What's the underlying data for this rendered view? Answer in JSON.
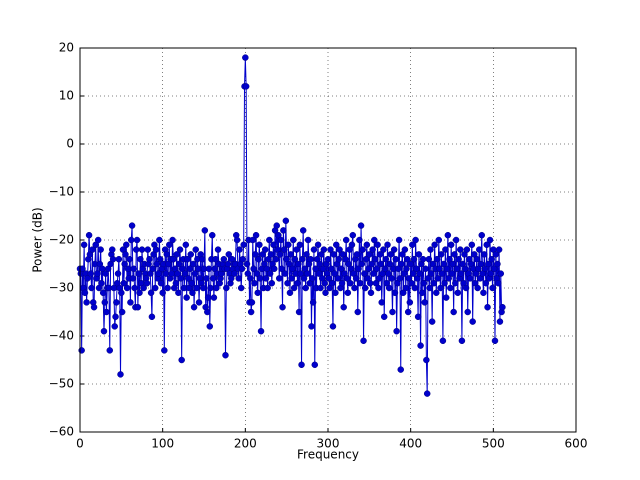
{
  "chart_data": {
    "type": "line",
    "xlabel": "Frequency",
    "ylabel": "Power (dB)",
    "xlim": [
      0,
      600
    ],
    "xticks": [
      0,
      100,
      200,
      300,
      400,
      500,
      600
    ],
    "ylim": [
      -60,
      20
    ],
    "yticks": [
      {
        "value": -60,
        "label": "−60"
      },
      {
        "value": -50,
        "label": "−50"
      },
      {
        "value": -40,
        "label": "−40"
      },
      {
        "value": -30,
        "label": "−30"
      },
      {
        "value": -20,
        "label": "−20"
      },
      {
        "value": -10,
        "label": "−10"
      },
      0,
      10,
      20
    ],
    "grid": true,
    "series": [
      {
        "color": "#0000cc",
        "x": [
          0,
          1,
          2,
          3,
          4,
          5,
          6,
          7,
          8,
          9,
          10,
          11,
          12,
          13,
          14,
          15,
          16,
          17,
          18,
          19,
          20,
          21,
          22,
          23,
          24,
          25,
          26,
          27,
          28,
          29,
          30,
          31,
          32,
          33,
          34,
          35,
          36,
          37,
          38,
          39,
          40,
          41,
          42,
          43,
          44,
          45,
          46,
          47,
          48,
          49,
          50,
          51,
          52,
          53,
          54,
          55,
          56,
          57,
          58,
          59,
          60,
          61,
          62,
          63,
          64,
          65,
          66,
          67,
          68,
          69,
          70,
          71,
          72,
          73,
          74,
          75,
          76,
          77,
          78,
          79,
          80,
          81,
          82,
          83,
          84,
          85,
          86,
          87,
          88,
          89,
          90,
          91,
          92,
          93,
          94,
          95,
          96,
          97,
          98,
          99,
          100,
          101,
          102,
          103,
          104,
          105,
          106,
          107,
          108,
          109,
          110,
          111,
          112,
          113,
          114,
          115,
          116,
          117,
          118,
          119,
          120,
          121,
          122,
          123,
          124,
          125,
          126,
          127,
          128,
          129,
          130,
          131,
          132,
          133,
          134,
          135,
          136,
          137,
          138,
          139,
          140,
          141,
          142,
          143,
          144,
          145,
          146,
          147,
          148,
          149,
          150,
          151,
          152,
          153,
          154,
          155,
          156,
          157,
          158,
          159,
          160,
          161,
          162,
          163,
          164,
          165,
          166,
          167,
          168,
          169,
          170,
          171,
          172,
          173,
          174,
          175,
          176,
          177,
          178,
          179,
          180,
          181,
          182,
          183,
          184,
          185,
          186,
          187,
          188,
          189,
          190,
          191,
          192,
          193,
          194,
          195,
          196,
          197,
          198,
          199,
          200,
          201,
          202,
          203,
          204,
          205,
          206,
          207,
          208,
          209,
          210,
          211,
          212,
          213,
          214,
          215,
          216,
          217,
          218,
          219,
          220,
          221,
          222,
          223,
          224,
          225,
          226,
          227,
          228,
          229,
          230,
          231,
          232,
          233,
          234,
          235,
          236,
          237,
          238,
          239,
          240,
          241,
          242,
          243,
          244,
          245,
          246,
          247,
          248,
          249,
          250,
          251,
          252,
          253,
          254,
          255,
          256,
          257,
          258,
          259,
          260,
          261,
          262,
          263,
          264,
          265,
          266,
          267,
          268,
          269,
          270,
          271,
          272,
          273,
          274,
          275,
          276,
          277,
          278,
          279,
          280,
          281,
          282,
          283,
          284,
          285,
          286,
          287,
          288,
          289,
          290,
          291,
          292,
          293,
          294,
          295,
          296,
          297,
          298,
          299,
          300,
          301,
          302,
          303,
          304,
          305,
          306,
          307,
          308,
          309,
          310,
          311,
          312,
          313,
          314,
          315,
          316,
          317,
          318,
          319,
          320,
          321,
          322,
          323,
          324,
          325,
          326,
          327,
          328,
          329,
          330,
          331,
          332,
          333,
          334,
          335,
          336,
          337,
          338,
          339,
          340,
          341,
          342,
          343,
          344,
          345,
          346,
          347,
          348,
          349,
          350,
          351,
          352,
          353,
          354,
          355,
          356,
          357,
          358,
          359,
          360,
          361,
          362,
          363,
          364,
          365,
          366,
          367,
          368,
          369,
          370,
          371,
          372,
          373,
          374,
          375,
          376,
          377,
          378,
          379,
          380,
          381,
          382,
          383,
          384,
          385,
          386,
          387,
          388,
          389,
          390,
          391,
          392,
          393,
          394,
          395,
          396,
          397,
          398,
          399,
          400,
          401,
          402,
          403,
          404,
          405,
          406,
          407,
          408,
          409,
          410,
          411,
          412,
          413,
          414,
          415,
          416,
          417,
          418,
          419,
          420,
          421,
          422,
          423,
          424,
          425,
          426,
          427,
          428,
          429,
          430,
          431,
          432,
          433,
          434,
          435,
          436,
          437,
          438,
          439,
          440,
          441,
          442,
          443,
          444,
          445,
          446,
          447,
          448,
          449,
          450,
          451,
          452,
          453,
          454,
          455,
          456,
          457,
          458,
          459,
          460,
          461,
          462,
          463,
          464,
          465,
          466,
          467,
          468,
          469,
          470,
          471,
          472,
          473,
          474,
          475,
          476,
          477,
          478,
          479,
          480,
          481,
          482,
          483,
          484,
          485,
          486,
          487,
          488,
          489,
          490,
          491,
          492,
          493,
          494,
          495,
          496,
          497,
          498,
          499,
          500,
          501,
          502,
          503,
          504,
          505,
          506,
          507,
          508,
          509,
          510,
          511
        ],
        "values": [
          -26,
          -27,
          -43,
          -26,
          -30,
          -21,
          -31,
          -27,
          -33,
          -28,
          -24,
          -19,
          -23,
          -27,
          -30,
          -22,
          -33,
          -34,
          -25,
          -21,
          -28,
          -27,
          -20,
          -30,
          -25,
          -22,
          -29,
          -26,
          -31,
          -39,
          -33,
          -27,
          -35,
          -30,
          -26,
          -30,
          -43,
          -25,
          -23,
          -22,
          -24,
          -30,
          -38,
          -36,
          -33,
          -29,
          -27,
          -24,
          -30,
          -48,
          -31,
          -35,
          -22,
          -29,
          -25,
          -23,
          -21,
          -30,
          -26,
          -28,
          -24,
          -33,
          -20,
          -17,
          -28,
          -26,
          -30,
          -34,
          -22,
          -20,
          -34,
          -27,
          -31,
          -24,
          -29,
          -22,
          -26,
          -30,
          -25,
          -27,
          -28,
          -29,
          -22,
          -25,
          -24,
          -27,
          -31,
          -36,
          -26,
          -23,
          -21,
          -30,
          -22,
          -25,
          -28,
          -27,
          -20,
          -24,
          -29,
          -26,
          -31,
          -25,
          -43,
          -22,
          -27,
          -23,
          -30,
          -25,
          -21,
          -28,
          -24,
          -27,
          -20,
          -24,
          -30,
          -26,
          -29,
          -23,
          -27,
          -31,
          -25,
          -22,
          -28,
          -45,
          -26,
          -24,
          -30,
          -27,
          -21,
          -32,
          -24,
          -28,
          -30,
          -26,
          -23,
          -29,
          -31,
          -25,
          -34,
          -27,
          -22,
          -30,
          -24,
          -26,
          -33,
          -28,
          -23,
          -29,
          -24,
          -30,
          -26,
          -18,
          -34,
          -28,
          -35,
          -32,
          -26,
          -38,
          -30,
          -24,
          -19,
          -28,
          -32,
          -26,
          -24,
          -30,
          -27,
          -22,
          -25,
          -29,
          -28,
          -27,
          -26,
          -25,
          -24,
          -26,
          -44,
          -30,
          -26,
          -25,
          -23,
          -27,
          -29,
          -28,
          -24,
          -26,
          -25,
          -27,
          -25,
          -19,
          -20,
          -26,
          -28,
          -22,
          -25,
          -30,
          -26,
          -24,
          -21,
          12,
          18,
          12,
          -25,
          -27,
          -20,
          -33,
          -28,
          -35,
          -33,
          -20,
          -26,
          -29,
          -23,
          -19,
          -27,
          -31,
          -24,
          -21,
          -28,
          -39,
          -26,
          -23,
          -30,
          -25,
          -22,
          -28,
          -26,
          -30,
          -24,
          -20,
          -27,
          -23,
          -29,
          -25,
          -21,
          -26,
          -18,
          -24,
          -17,
          -22,
          -19,
          -28,
          -23,
          -20,
          -26,
          -34,
          -18,
          -22,
          -27,
          -16,
          -24,
          -29,
          -21,
          -25,
          -31,
          -23,
          -28,
          -26,
          -20,
          -30,
          -24,
          -27,
          -22,
          -29,
          -25,
          -35,
          -21,
          -27,
          -46,
          -24,
          -18,
          -28,
          -26,
          -30,
          -23,
          -27,
          -20,
          -25,
          -29,
          -24,
          -38,
          -28,
          -33,
          -22,
          -46,
          -26,
          -30,
          -24,
          -21,
          -27,
          -25,
          -30,
          -23,
          -28,
          -26,
          -22,
          -29,
          -31,
          -25,
          -27,
          -24,
          -28,
          -30,
          -22,
          -26,
          -29,
          -38,
          -23,
          -27,
          -31,
          -21,
          -25,
          -28,
          -24,
          -22,
          -30,
          -26,
          -29,
          -23,
          -34,
          -27,
          -24,
          -20,
          -28,
          -31,
          -25,
          -22,
          -29,
          -26,
          -21,
          -19,
          -27,
          -30,
          -24,
          -28,
          -23,
          -35,
          -26,
          -20,
          -29,
          -17,
          -25,
          -22,
          -41,
          -27,
          -30,
          -24,
          -21,
          -28,
          -26,
          -23,
          -29,
          -31,
          -25,
          -22,
          -27,
          -20,
          -24,
          -29,
          -26,
          -21,
          -30,
          -28,
          -23,
          -25,
          -33,
          -27,
          -22,
          -36,
          -26,
          -24,
          -29,
          -21,
          -27,
          -30,
          -25,
          -23,
          -28,
          -35,
          -26,
          -22,
          -31,
          -24,
          -39,
          -29,
          -26,
          -20,
          -28,
          -47,
          -25,
          -23,
          -31,
          -27,
          -22,
          -30,
          -26,
          -24,
          -35,
          -28,
          -33,
          -25,
          -29,
          -21,
          -27,
          -24,
          -30,
          -20,
          -26,
          -28,
          -36,
          -23,
          -27,
          -42,
          -25,
          -31,
          -24,
          -29,
          -33,
          -26,
          -45,
          -52,
          -28,
          -24,
          -30,
          -22,
          -27,
          -37,
          -25,
          -29,
          -21,
          -26,
          -31,
          -24,
          -28,
          -20,
          -26,
          -30,
          -23,
          -27,
          -41,
          -25,
          -29,
          -22,
          -32,
          -26,
          -19,
          -28,
          -24,
          -30,
          -21,
          -27,
          -25,
          -35,
          -23,
          -29,
          -20,
          -26,
          -31,
          -24,
          -28,
          -22,
          -27,
          -41,
          -25,
          -29,
          -23,
          -26,
          -30,
          -22,
          -35,
          -27,
          -24,
          -28,
          -25,
          -21,
          -37,
          -26,
          -23,
          -29,
          -27,
          -24,
          -30,
          -26,
          -22,
          -28,
          -25,
          -19,
          -27,
          -31,
          -23,
          -26,
          -29,
          -21,
          -34,
          -25,
          -28,
          -20,
          -27,
          -24,
          -30,
          -22,
          -26,
          -41,
          -23,
          -28,
          -25,
          -29,
          -22,
          -37,
          -27,
          -35,
          -34
        ]
      }
    ]
  }
}
